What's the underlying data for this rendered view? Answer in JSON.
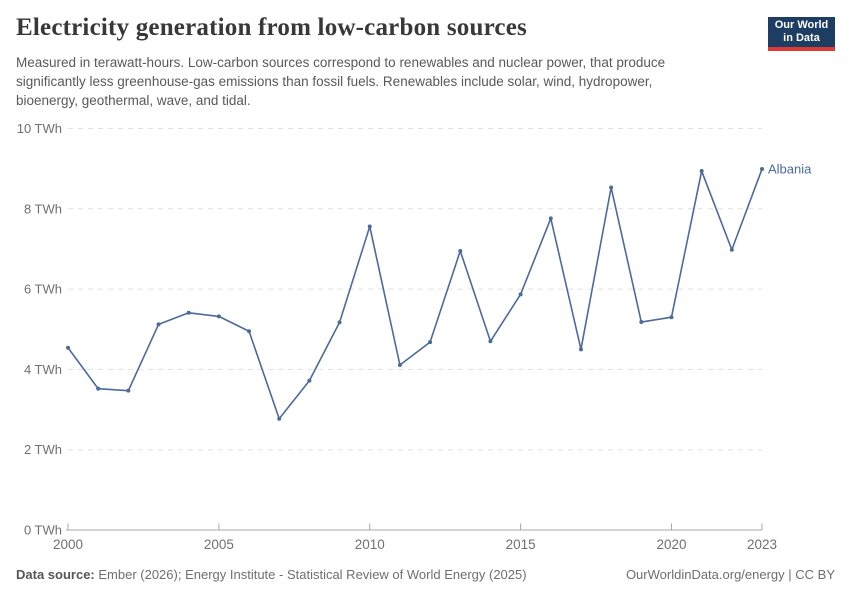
{
  "header": {
    "title": "Electricity generation from low-carbon sources",
    "subtitle_lines": [
      "Measured in terawatt-hours. Low-carbon sources correspond to renewables and nuclear power, that produce",
      "significantly less greenhouse-gas emissions than fossil fuels. Renewables include solar, wind, hydropower,",
      "bioenergy, geothermal, wave, and tidal."
    ],
    "logo": {
      "line1": "Our World",
      "line2": "in Data",
      "bg_color": "#1d3d63",
      "accent_color": "#dc3a34"
    }
  },
  "chart_data": {
    "type": "line",
    "title": "Electricity generation from low-carbon sources",
    "unit": "TWh",
    "x": [
      2000,
      2001,
      2002,
      2003,
      2004,
      2005,
      2006,
      2007,
      2008,
      2009,
      2010,
      2011,
      2012,
      2013,
      2014,
      2015,
      2016,
      2017,
      2018,
      2019,
      2020,
      2021,
      2022,
      2023
    ],
    "series": [
      {
        "name": "Albania",
        "color": "#4C6A9C",
        "values": [
          4.54,
          3.52,
          3.47,
          5.12,
          5.41,
          5.32,
          4.95,
          2.77,
          3.72,
          5.17,
          7.56,
          4.11,
          4.68,
          6.95,
          4.7,
          5.87,
          7.76,
          4.5,
          8.53,
          5.18,
          5.3,
          8.94,
          6.98,
          8.99
        ]
      }
    ],
    "end_label": "Albania",
    "ylim": [
      0,
      10
    ],
    "yticks": [
      0,
      2,
      4,
      6,
      8,
      10
    ],
    "ytick_suffix": " TWh",
    "xticks": [
      2000,
      2005,
      2010,
      2015,
      2020,
      2023
    ],
    "grid": "horizontal-dashed",
    "legend_position": "end-of-line",
    "colors": {
      "grid": "#e1e1e1",
      "axis": "#a8a8a8",
      "tick_label": "#707070"
    }
  },
  "footer": {
    "source_label": "Data source:",
    "source_text": " Ember (2026); Energy Institute - Statistical Review of World Energy (2025)",
    "rights": "OurWorldinData.org/energy | CC BY"
  }
}
